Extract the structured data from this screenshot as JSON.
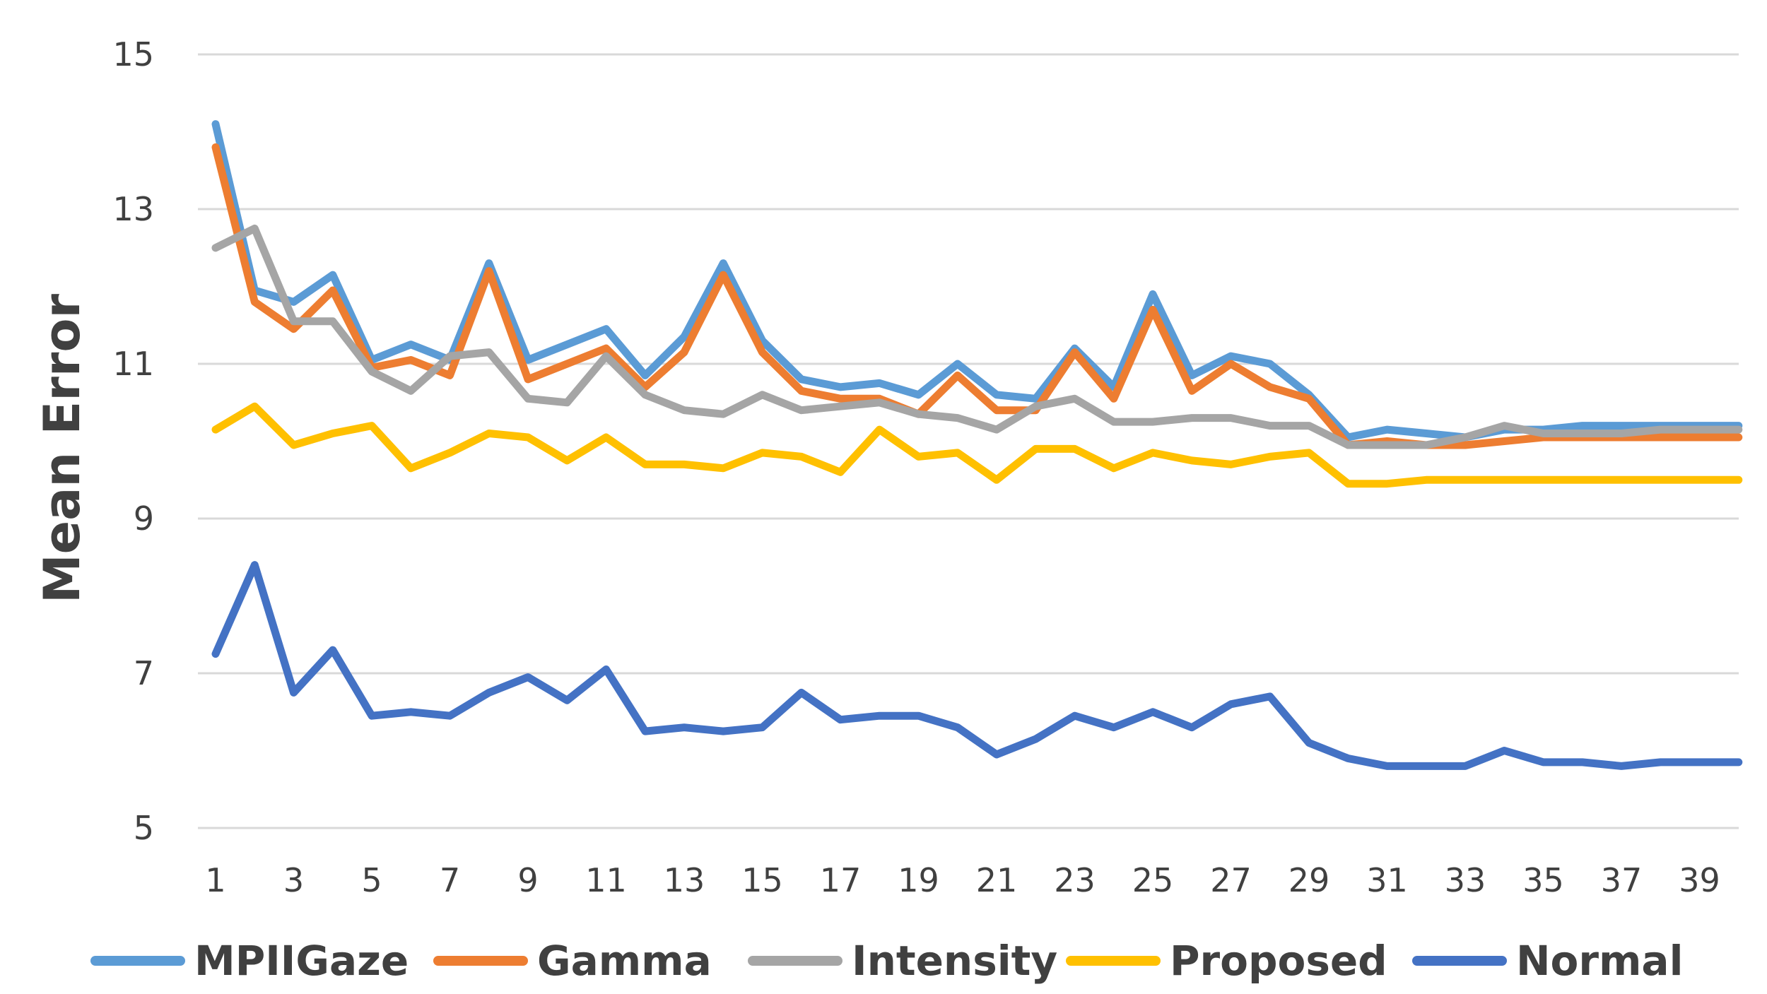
{
  "chart_data": {
    "type": "line",
    "title": "",
    "xlabel": "",
    "ylabel": "Mean Error",
    "ylim": [
      5,
      15
    ],
    "yticks": [
      5,
      7,
      9,
      11,
      13,
      15
    ],
    "x": [
      1,
      2,
      3,
      4,
      5,
      6,
      7,
      8,
      9,
      10,
      11,
      12,
      13,
      14,
      15,
      16,
      17,
      18,
      19,
      20,
      21,
      22,
      23,
      24,
      25,
      26,
      27,
      28,
      29,
      30,
      31,
      32,
      33,
      34,
      35,
      36,
      37,
      38,
      39,
      40
    ],
    "xtick_labels": [
      "1",
      "3",
      "5",
      "7",
      "9",
      "11",
      "13",
      "15",
      "17",
      "19",
      "21",
      "23",
      "25",
      "27",
      "29",
      "31",
      "33",
      "35",
      "37",
      "39"
    ],
    "xtick_values": [
      1,
      3,
      5,
      7,
      9,
      11,
      13,
      15,
      17,
      19,
      21,
      23,
      25,
      27,
      29,
      31,
      33,
      35,
      37,
      39
    ],
    "grid": true,
    "legend_position": "bottom",
    "series": [
      {
        "name": "MPIIGaze",
        "color": "#5B9BD5",
        "values": [
          14.1,
          11.95,
          11.8,
          12.15,
          11.05,
          11.25,
          11.05,
          12.3,
          11.05,
          11.25,
          11.45,
          10.85,
          11.35,
          12.3,
          11.3,
          10.8,
          10.7,
          10.75,
          10.6,
          11.0,
          10.6,
          10.55,
          11.2,
          10.7,
          11.9,
          10.85,
          11.1,
          11.0,
          10.6,
          10.05,
          10.15,
          10.1,
          10.05,
          10.15,
          10.15,
          10.2,
          10.2,
          10.2,
          10.2,
          10.2
        ]
      },
      {
        "name": "Gamma",
        "color": "#ED7D31",
        "values": [
          13.8,
          11.8,
          11.45,
          11.95,
          10.95,
          11.05,
          10.85,
          12.2,
          10.8,
          11.0,
          11.2,
          10.7,
          11.15,
          12.15,
          11.15,
          10.65,
          10.55,
          10.55,
          10.35,
          10.85,
          10.4,
          10.4,
          11.15,
          10.55,
          11.7,
          10.65,
          11.0,
          10.7,
          10.55,
          9.95,
          10.0,
          9.95,
          9.95,
          10.0,
          10.05,
          10.05,
          10.05,
          10.05,
          10.05,
          10.05
        ]
      },
      {
        "name": "Intensity",
        "color": "#A5A5A5",
        "values": [
          12.5,
          12.75,
          11.55,
          11.55,
          10.9,
          10.65,
          11.1,
          11.15,
          10.55,
          10.5,
          11.1,
          10.6,
          10.4,
          10.35,
          10.6,
          10.4,
          10.45,
          10.5,
          10.35,
          10.3,
          10.15,
          10.45,
          10.55,
          10.25,
          10.25,
          10.3,
          10.3,
          10.2,
          10.2,
          9.95,
          9.95,
          9.95,
          10.05,
          10.2,
          10.1,
          10.1,
          10.1,
          10.15,
          10.15,
          10.15
        ]
      },
      {
        "name": "Proposed",
        "color": "#FFC000",
        "values": [
          10.15,
          10.45,
          9.95,
          10.1,
          10.2,
          9.65,
          9.85,
          10.1,
          10.05,
          9.75,
          10.05,
          9.7,
          9.7,
          9.65,
          9.85,
          9.8,
          9.6,
          10.15,
          9.8,
          9.85,
          9.5,
          9.9,
          9.9,
          9.65,
          9.85,
          9.75,
          9.7,
          9.8,
          9.85,
          9.45,
          9.45,
          9.5,
          9.5,
          9.5,
          9.5,
          9.5,
          9.5,
          9.5,
          9.5,
          9.5
        ]
      },
      {
        "name": "Normal",
        "color": "#4472C4",
        "values": [
          7.25,
          8.4,
          6.75,
          7.3,
          6.45,
          6.5,
          6.45,
          6.75,
          6.95,
          6.65,
          7.05,
          6.25,
          6.3,
          6.25,
          6.3,
          6.75,
          6.4,
          6.45,
          6.45,
          6.3,
          5.95,
          6.15,
          6.45,
          6.3,
          6.5,
          6.3,
          6.6,
          6.7,
          6.1,
          5.9,
          5.8,
          5.8,
          5.8,
          6.0,
          5.85,
          5.85,
          5.8,
          5.85,
          5.85,
          5.85
        ]
      }
    ]
  }
}
